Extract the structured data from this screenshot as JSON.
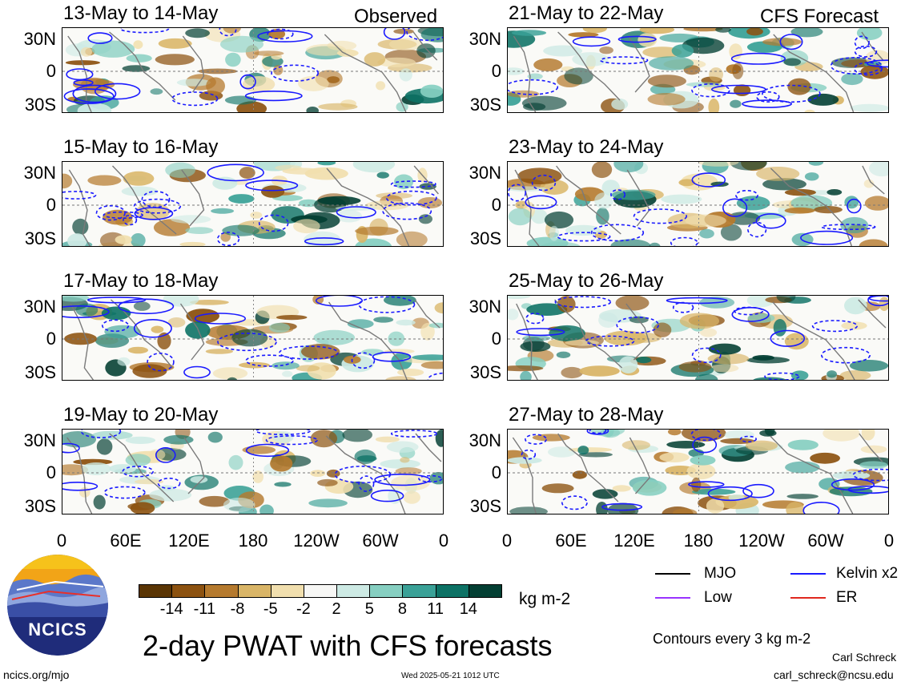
{
  "panels": [
    {
      "title": "13-May to 14-May",
      "tag": "Observed"
    },
    {
      "title": "15-May to 16-May",
      "tag": ""
    },
    {
      "title": "17-May to 18-May",
      "tag": ""
    },
    {
      "title": "19-May to 20-May",
      "tag": ""
    },
    {
      "title": "21-May to 22-May",
      "tag": "CFS Forecast"
    },
    {
      "title": "23-May to 24-May",
      "tag": ""
    },
    {
      "title": "25-May to 26-May",
      "tag": ""
    },
    {
      "title": "27-May to 28-May",
      "tag": ""
    }
  ],
  "lat_labels": [
    "30N",
    "0",
    "30S"
  ],
  "lon_labels": [
    "0",
    "60E",
    "120E",
    "180",
    "120W",
    "60W",
    "0"
  ],
  "colorbar": {
    "colors": [
      "#5a3504",
      "#8c5210",
      "#b57a2e",
      "#d9b567",
      "#f1dfae",
      "#f7f7f5",
      "#cdeae4",
      "#86cfc1",
      "#3aa197",
      "#0d7265",
      "#033f33"
    ],
    "tick_labels": [
      "-14",
      "-11",
      "-8",
      "-5",
      "-2",
      "2",
      "5",
      "8",
      "11",
      "14"
    ],
    "units": "kg m-2"
  },
  "main_title": "2-day PWAT with CFS forecasts",
  "legend": {
    "items": [
      {
        "label": "MJO",
        "color": "#000000"
      },
      {
        "label": "Kelvin x2",
        "color": "#1a1aff"
      },
      {
        "label": "Low",
        "color": "#9933ff"
      },
      {
        "label": "ER",
        "color": "#e0281e"
      }
    ],
    "contour_note": "Contours every 3 kg m-2"
  },
  "logo_text": "NCICS",
  "footer": {
    "url": "ncics.org/mjo",
    "timestamp": "Wed 2025-05-21 1012 UTC",
    "author": "Carl Schreck",
    "email": "carl_schreck@ncsu.edu"
  }
}
